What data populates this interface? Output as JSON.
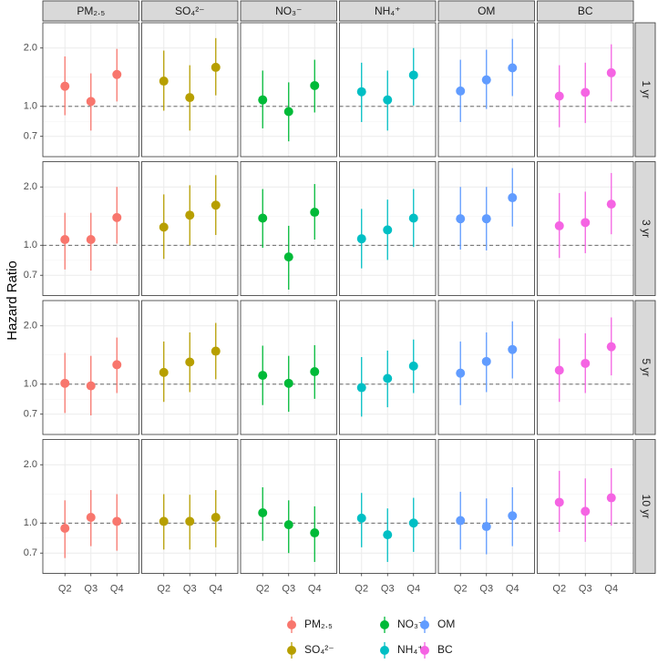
{
  "chart_data": {
    "type": "pointrange",
    "y_label": "Hazard Ratio",
    "categories": [
      "Q2",
      "Q3",
      "Q4"
    ],
    "rows": [
      "1 yr",
      "3 yr",
      "5 yr",
      "10 yr"
    ],
    "log_y": true,
    "ylim": [
      0.55,
      2.7
    ],
    "yticks": [
      {
        "value": 0.7,
        "label": "0.7"
      },
      {
        "value": 1,
        "label": "1.0"
      },
      {
        "value": 2,
        "label": "2.0"
      }
    ],
    "reference_line": 1,
    "grid": true,
    "legend": "bottom",
    "series": [
      {
        "name": "PM₂.₅",
        "color": "#F8766D",
        "values": [
          [
            1.27,
            1.06,
            1.46
          ],
          [
            1.07,
            1.07,
            1.39
          ],
          [
            1.01,
            0.98,
            1.26
          ],
          [
            0.94,
            1.07,
            1.02
          ]
        ],
        "lower": [
          [
            0.9,
            0.75,
            1.06
          ],
          [
            0.75,
            0.74,
            1.02
          ],
          [
            0.71,
            0.69,
            0.9
          ],
          [
            0.66,
            0.76,
            0.72
          ]
        ],
        "upper": [
          [
            1.81,
            1.48,
            1.98
          ],
          [
            1.47,
            1.47,
            2.0
          ],
          [
            1.45,
            1.4,
            1.74
          ],
          [
            1.31,
            1.48,
            1.41
          ]
        ]
      },
      {
        "name": "SO₄²⁻",
        "color": "#B79F00",
        "values": [
          [
            1.35,
            1.11,
            1.59
          ],
          [
            1.24,
            1.43,
            1.61
          ],
          [
            1.15,
            1.3,
            1.48
          ],
          [
            1.02,
            1.02,
            1.07
          ]
        ],
        "lower": [
          [
            0.95,
            0.75,
            1.14
          ],
          [
            0.85,
            1.0,
            1.13
          ],
          [
            0.81,
            0.91,
            1.06
          ],
          [
            0.73,
            0.73,
            0.75
          ]
        ],
        "upper": [
          [
            1.94,
            1.63,
            2.25
          ],
          [
            1.83,
            2.04,
            2.3
          ],
          [
            1.66,
            1.85,
            2.07
          ],
          [
            1.41,
            1.4,
            1.48
          ]
        ]
      },
      {
        "name": "NO₃⁻",
        "color": "#00BA38",
        "values": [
          [
            1.08,
            0.94,
            1.28
          ],
          [
            1.38,
            0.87,
            1.48
          ],
          [
            1.11,
            1.01,
            1.16
          ],
          [
            1.13,
            0.98,
            0.89
          ]
        ],
        "lower": [
          [
            0.77,
            0.66,
            0.93
          ],
          [
            0.97,
            0.59,
            1.07
          ],
          [
            0.78,
            0.72,
            0.84
          ],
          [
            0.81,
            0.7,
            0.63
          ]
        ],
        "upper": [
          [
            1.53,
            1.33,
            1.74
          ],
          [
            1.95,
            1.26,
            2.07
          ],
          [
            1.58,
            1.4,
            1.59
          ],
          [
            1.53,
            1.31,
            1.22
          ]
        ]
      },
      {
        "name": "NH₄⁺",
        "color": "#00BFC4",
        "values": [
          [
            1.19,
            1.08,
            1.45
          ],
          [
            1.08,
            1.2,
            1.38
          ],
          [
            0.96,
            1.07,
            1.24
          ],
          [
            1.06,
            0.87,
            1.0
          ]
        ],
        "lower": [
          [
            0.83,
            0.75,
            1.01
          ],
          [
            0.76,
            0.84,
            0.98
          ],
          [
            0.68,
            0.76,
            0.9
          ],
          [
            0.75,
            0.63,
            0.71
          ]
        ],
        "upper": [
          [
            1.68,
            1.53,
            2.0
          ],
          [
            1.54,
            1.72,
            1.95
          ],
          [
            1.38,
            1.49,
            1.7
          ],
          [
            1.43,
            1.19,
            1.35
          ]
        ]
      },
      {
        "name": "OM",
        "color": "#619CFF",
        "values": [
          [
            1.2,
            1.37,
            1.58
          ],
          [
            1.37,
            1.37,
            1.76
          ],
          [
            1.14,
            1.31,
            1.51
          ],
          [
            1.03,
            0.96,
            1.09
          ]
        ],
        "lower": [
          [
            0.83,
            0.97,
            1.13
          ],
          [
            0.95,
            0.94,
            1.25
          ],
          [
            0.78,
            0.91,
            1.07
          ],
          [
            0.73,
            0.69,
            0.76
          ]
        ],
        "upper": [
          [
            1.74,
            1.96,
            2.23
          ],
          [
            2.0,
            2.0,
            2.5
          ],
          [
            1.66,
            1.85,
            2.11
          ],
          [
            1.45,
            1.34,
            1.53
          ]
        ]
      },
      {
        "name": "BC",
        "color": "#F564E3",
        "values": [
          [
            1.13,
            1.18,
            1.49
          ],
          [
            1.26,
            1.31,
            1.63
          ],
          [
            1.18,
            1.28,
            1.56
          ],
          [
            1.28,
            1.15,
            1.35
          ]
        ],
        "lower": [
          [
            0.78,
            0.82,
            1.06
          ],
          [
            0.86,
            0.91,
            1.14
          ],
          [
            0.81,
            0.9,
            1.11
          ],
          [
            0.9,
            0.8,
            0.97
          ]
        ],
        "upper": [
          [
            1.63,
            1.68,
            2.09
          ],
          [
            1.86,
            1.89,
            2.36
          ],
          [
            1.72,
            1.83,
            2.21
          ],
          [
            1.86,
            1.7,
            1.92
          ]
        ]
      }
    ]
  }
}
